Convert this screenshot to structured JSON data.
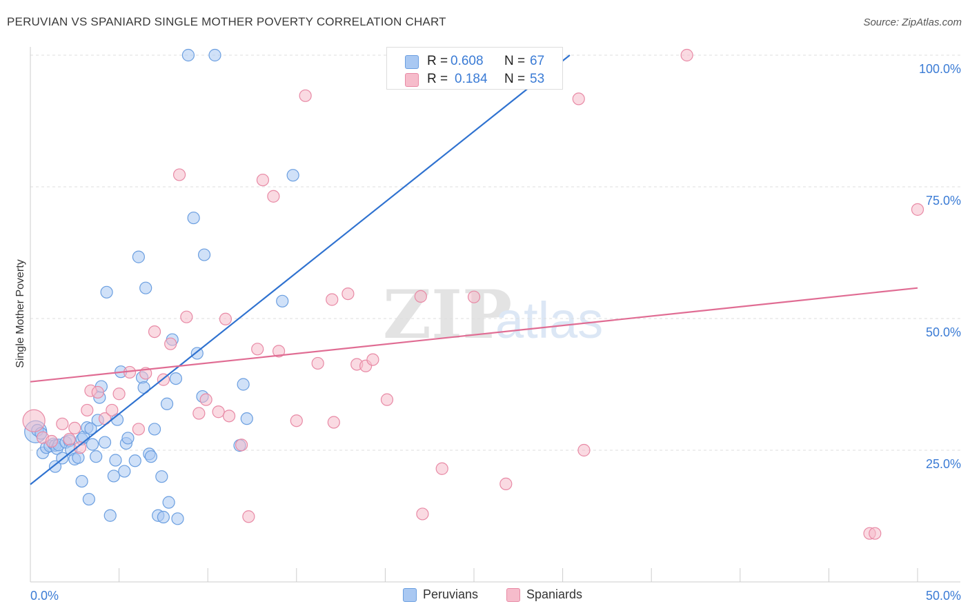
{
  "title": "PERUVIAN VS SPANIARD SINGLE MOTHER POVERTY CORRELATION CHART",
  "source": "Source: ZipAtlas.com",
  "watermark": {
    "zip": "ZIP",
    "atlas": "atlas"
  },
  "colors": {
    "peruvians_fill": "#a9c8f2",
    "peruvians_stroke": "#6a9ee0",
    "peruvians_line": "#2f72d0",
    "spaniards_fill": "#f6bccb",
    "spaniards_stroke": "#e889a5",
    "spaniards_line": "#e06c93",
    "tick_label": "#3a7bd5"
  },
  "stats": {
    "r_label": "R =",
    "n_label": "N =",
    "rows": [
      {
        "series": "Peruvians",
        "r": "0.608",
        "n": "67"
      },
      {
        "series": "Spaniards",
        "r": "0.184",
        "n": "53"
      }
    ]
  },
  "chart_data": {
    "type": "scatter",
    "ylabel": "Single Mother Poverty",
    "xlim": [
      0,
      50
    ],
    "ylim": [
      0,
      100
    ],
    "x_tick_labels": [
      {
        "value": 0,
        "label": "0.0%"
      },
      {
        "value": 50,
        "label": "50.0%"
      }
    ],
    "y_tick_labels": [
      {
        "value": 25,
        "label": "25.0%"
      },
      {
        "value": 50,
        "label": "50.0%"
      },
      {
        "value": 75,
        "label": "75.0%"
      },
      {
        "value": 100,
        "label": "100.0%"
      }
    ],
    "grid": "horizontal dashed",
    "legend": "bottom-center",
    "series": [
      {
        "name": "Peruvians",
        "trend": {
          "x": [
            0,
            30.4
          ],
          "y": [
            18.5,
            100
          ]
        },
        "points": [
          {
            "x": 0.3,
            "y": 28.5,
            "big": true
          },
          {
            "x": 0.4,
            "y": 28.8
          },
          {
            "x": 0.6,
            "y": 28.2
          },
          {
            "x": 0.7,
            "y": 24.5
          },
          {
            "x": 0.9,
            "y": 25.5
          },
          {
            "x": 1.1,
            "y": 25.8
          },
          {
            "x": 1.3,
            "y": 26.2
          },
          {
            "x": 1.4,
            "y": 25.9
          },
          {
            "x": 1.5,
            "y": 25.3
          },
          {
            "x": 1.6,
            "y": 26.0
          },
          {
            "x": 1.4,
            "y": 21.9
          },
          {
            "x": 1.8,
            "y": 23.5
          },
          {
            "x": 2.0,
            "y": 26.5
          },
          {
            "x": 2.2,
            "y": 26.8
          },
          {
            "x": 2.3,
            "y": 25.1
          },
          {
            "x": 2.5,
            "y": 23.3
          },
          {
            "x": 2.7,
            "y": 23.6
          },
          {
            "x": 2.9,
            "y": 27.1
          },
          {
            "x": 3.0,
            "y": 27.5
          },
          {
            "x": 2.9,
            "y": 19.1
          },
          {
            "x": 3.2,
            "y": 29.3
          },
          {
            "x": 3.3,
            "y": 15.7
          },
          {
            "x": 3.4,
            "y": 29.1
          },
          {
            "x": 3.5,
            "y": 26.1
          },
          {
            "x": 3.7,
            "y": 23.8
          },
          {
            "x": 3.8,
            "y": 30.7
          },
          {
            "x": 3.9,
            "y": 35.0
          },
          {
            "x": 4.0,
            "y": 37.1
          },
          {
            "x": 4.2,
            "y": 26.5
          },
          {
            "x": 4.3,
            "y": 55.0
          },
          {
            "x": 4.5,
            "y": 12.6
          },
          {
            "x": 4.7,
            "y": 20.1
          },
          {
            "x": 4.8,
            "y": 23.1
          },
          {
            "x": 4.9,
            "y": 30.8
          },
          {
            "x": 5.1,
            "y": 39.9
          },
          {
            "x": 5.3,
            "y": 21.0
          },
          {
            "x": 5.4,
            "y": 26.3
          },
          {
            "x": 5.5,
            "y": 27.3
          },
          {
            "x": 5.9,
            "y": 23.0
          },
          {
            "x": 6.1,
            "y": 61.7
          },
          {
            "x": 6.3,
            "y": 38.8
          },
          {
            "x": 6.4,
            "y": 36.9
          },
          {
            "x": 6.5,
            "y": 55.8
          },
          {
            "x": 6.7,
            "y": 24.3
          },
          {
            "x": 6.8,
            "y": 23.8
          },
          {
            "x": 7.0,
            "y": 29.0
          },
          {
            "x": 7.2,
            "y": 12.6
          },
          {
            "x": 7.4,
            "y": 20.0
          },
          {
            "x": 7.5,
            "y": 12.3
          },
          {
            "x": 7.7,
            "y": 33.8
          },
          {
            "x": 7.8,
            "y": 15.1
          },
          {
            "x": 8.0,
            "y": 46.0
          },
          {
            "x": 8.2,
            "y": 38.6
          },
          {
            "x": 8.3,
            "y": 12.0
          },
          {
            "x": 8.9,
            "y": 100
          },
          {
            "x": 9.2,
            "y": 69.1
          },
          {
            "x": 9.4,
            "y": 43.4
          },
          {
            "x": 9.7,
            "y": 35.2
          },
          {
            "x": 9.8,
            "y": 62.1
          },
          {
            "x": 10.4,
            "y": 100
          },
          {
            "x": 11.8,
            "y": 25.9
          },
          {
            "x": 12.0,
            "y": 37.5
          },
          {
            "x": 12.2,
            "y": 31.0
          },
          {
            "x": 14.2,
            "y": 53.3
          },
          {
            "x": 14.8,
            "y": 77.2
          },
          {
            "x": 24.4,
            "y": 100
          },
          {
            "x": 28.8,
            "y": 100
          }
        ]
      },
      {
        "name": "Spaniards",
        "trend": {
          "x": [
            0,
            50
          ],
          "y": [
            38.0,
            55.8
          ]
        },
        "points": [
          {
            "x": 0.2,
            "y": 30.6,
            "big": true
          },
          {
            "x": 0.7,
            "y": 27.4
          },
          {
            "x": 1.2,
            "y": 26.7
          },
          {
            "x": 2.2,
            "y": 27.1
          },
          {
            "x": 1.8,
            "y": 30.0
          },
          {
            "x": 2.5,
            "y": 29.2
          },
          {
            "x": 2.8,
            "y": 25.5
          },
          {
            "x": 3.2,
            "y": 32.6
          },
          {
            "x": 3.4,
            "y": 36.3
          },
          {
            "x": 3.8,
            "y": 36.0
          },
          {
            "x": 4.2,
            "y": 31.0
          },
          {
            "x": 4.6,
            "y": 32.6
          },
          {
            "x": 5.0,
            "y": 35.7
          },
          {
            "x": 5.6,
            "y": 39.8
          },
          {
            "x": 6.1,
            "y": 29.0
          },
          {
            "x": 6.5,
            "y": 39.6
          },
          {
            "x": 7.0,
            "y": 47.5
          },
          {
            "x": 7.5,
            "y": 38.4
          },
          {
            "x": 7.9,
            "y": 45.2
          },
          {
            "x": 8.4,
            "y": 77.3
          },
          {
            "x": 8.8,
            "y": 50.3
          },
          {
            "x": 9.5,
            "y": 32.0
          },
          {
            "x": 9.9,
            "y": 34.6
          },
          {
            "x": 10.6,
            "y": 32.3
          },
          {
            "x": 11.0,
            "y": 49.9
          },
          {
            "x": 11.2,
            "y": 31.5
          },
          {
            "x": 11.9,
            "y": 26.0
          },
          {
            "x": 12.3,
            "y": 12.4
          },
          {
            "x": 12.8,
            "y": 44.2
          },
          {
            "x": 13.1,
            "y": 76.3
          },
          {
            "x": 13.7,
            "y": 73.2
          },
          {
            "x": 14.0,
            "y": 43.8
          },
          {
            "x": 15.0,
            "y": 30.6
          },
          {
            "x": 15.5,
            "y": 92.3
          },
          {
            "x": 16.2,
            "y": 41.5
          },
          {
            "x": 17.0,
            "y": 53.6
          },
          {
            "x": 17.1,
            "y": 30.3
          },
          {
            "x": 17.9,
            "y": 54.7
          },
          {
            "x": 18.4,
            "y": 41.3
          },
          {
            "x": 18.9,
            "y": 41.0
          },
          {
            "x": 19.3,
            "y": 42.2
          },
          {
            "x": 20.1,
            "y": 34.6
          },
          {
            "x": 22.0,
            "y": 54.2
          },
          {
            "x": 22.1,
            "y": 12.9
          },
          {
            "x": 23.2,
            "y": 21.5
          },
          {
            "x": 25.0,
            "y": 54.1
          },
          {
            "x": 26.8,
            "y": 18.6
          },
          {
            "x": 30.9,
            "y": 91.7
          },
          {
            "x": 31.2,
            "y": 25.0
          },
          {
            "x": 37.0,
            "y": 100
          },
          {
            "x": 47.3,
            "y": 9.2
          },
          {
            "x": 47.6,
            "y": 9.2
          },
          {
            "x": 50.0,
            "y": 70.7
          }
        ]
      }
    ]
  },
  "legend_items": [
    "Peruvians",
    "Spaniards"
  ]
}
